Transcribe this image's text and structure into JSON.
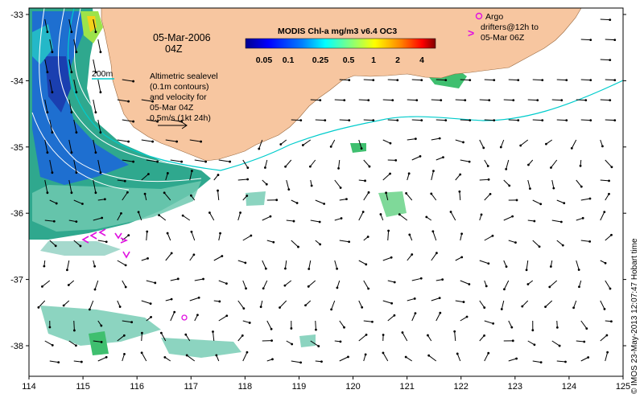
{
  "map": {
    "title": "MODIS Chl-a mg/m3 v6.4 OC3",
    "date": "05-Mar-2006",
    "time": "04Z",
    "lon_ticks": [
      "114",
      "115",
      "116",
      "117",
      "118",
      "119",
      "120",
      "121",
      "122",
      "123",
      "124",
      "125"
    ],
    "lat_ticks": [
      "-33",
      "-34",
      "-35",
      "-36",
      "-37",
      "-38"
    ],
    "colorbar_ticks": [
      "0.05",
      "0.1",
      "0.25",
      "0.5",
      "1",
      "2",
      "4"
    ],
    "colors": {
      "land": "#f7c6a0",
      "ocean": "#ffffff",
      "contour": "#ffffff",
      "isobath": "#00cccc",
      "argo": "#e010e0"
    }
  },
  "annotations": {
    "isobath_label": "200m",
    "legend_line1": "Altimetric sealevel",
    "legend_line2": "(0.1m contours)",
    "legend_line3": "and velocity for",
    "legend_line4": "05-Mar 04Z",
    "legend_line5": "0.5m/s (1kt 24h)",
    "argo_line1": "Argo",
    "argo_line2": "drifters@12h to",
    "argo_line3": "05-Mar 06Z",
    "argo_marker": ">",
    "credit": "© IMOS 23-May-2013 12:07:47 Hobart time"
  }
}
